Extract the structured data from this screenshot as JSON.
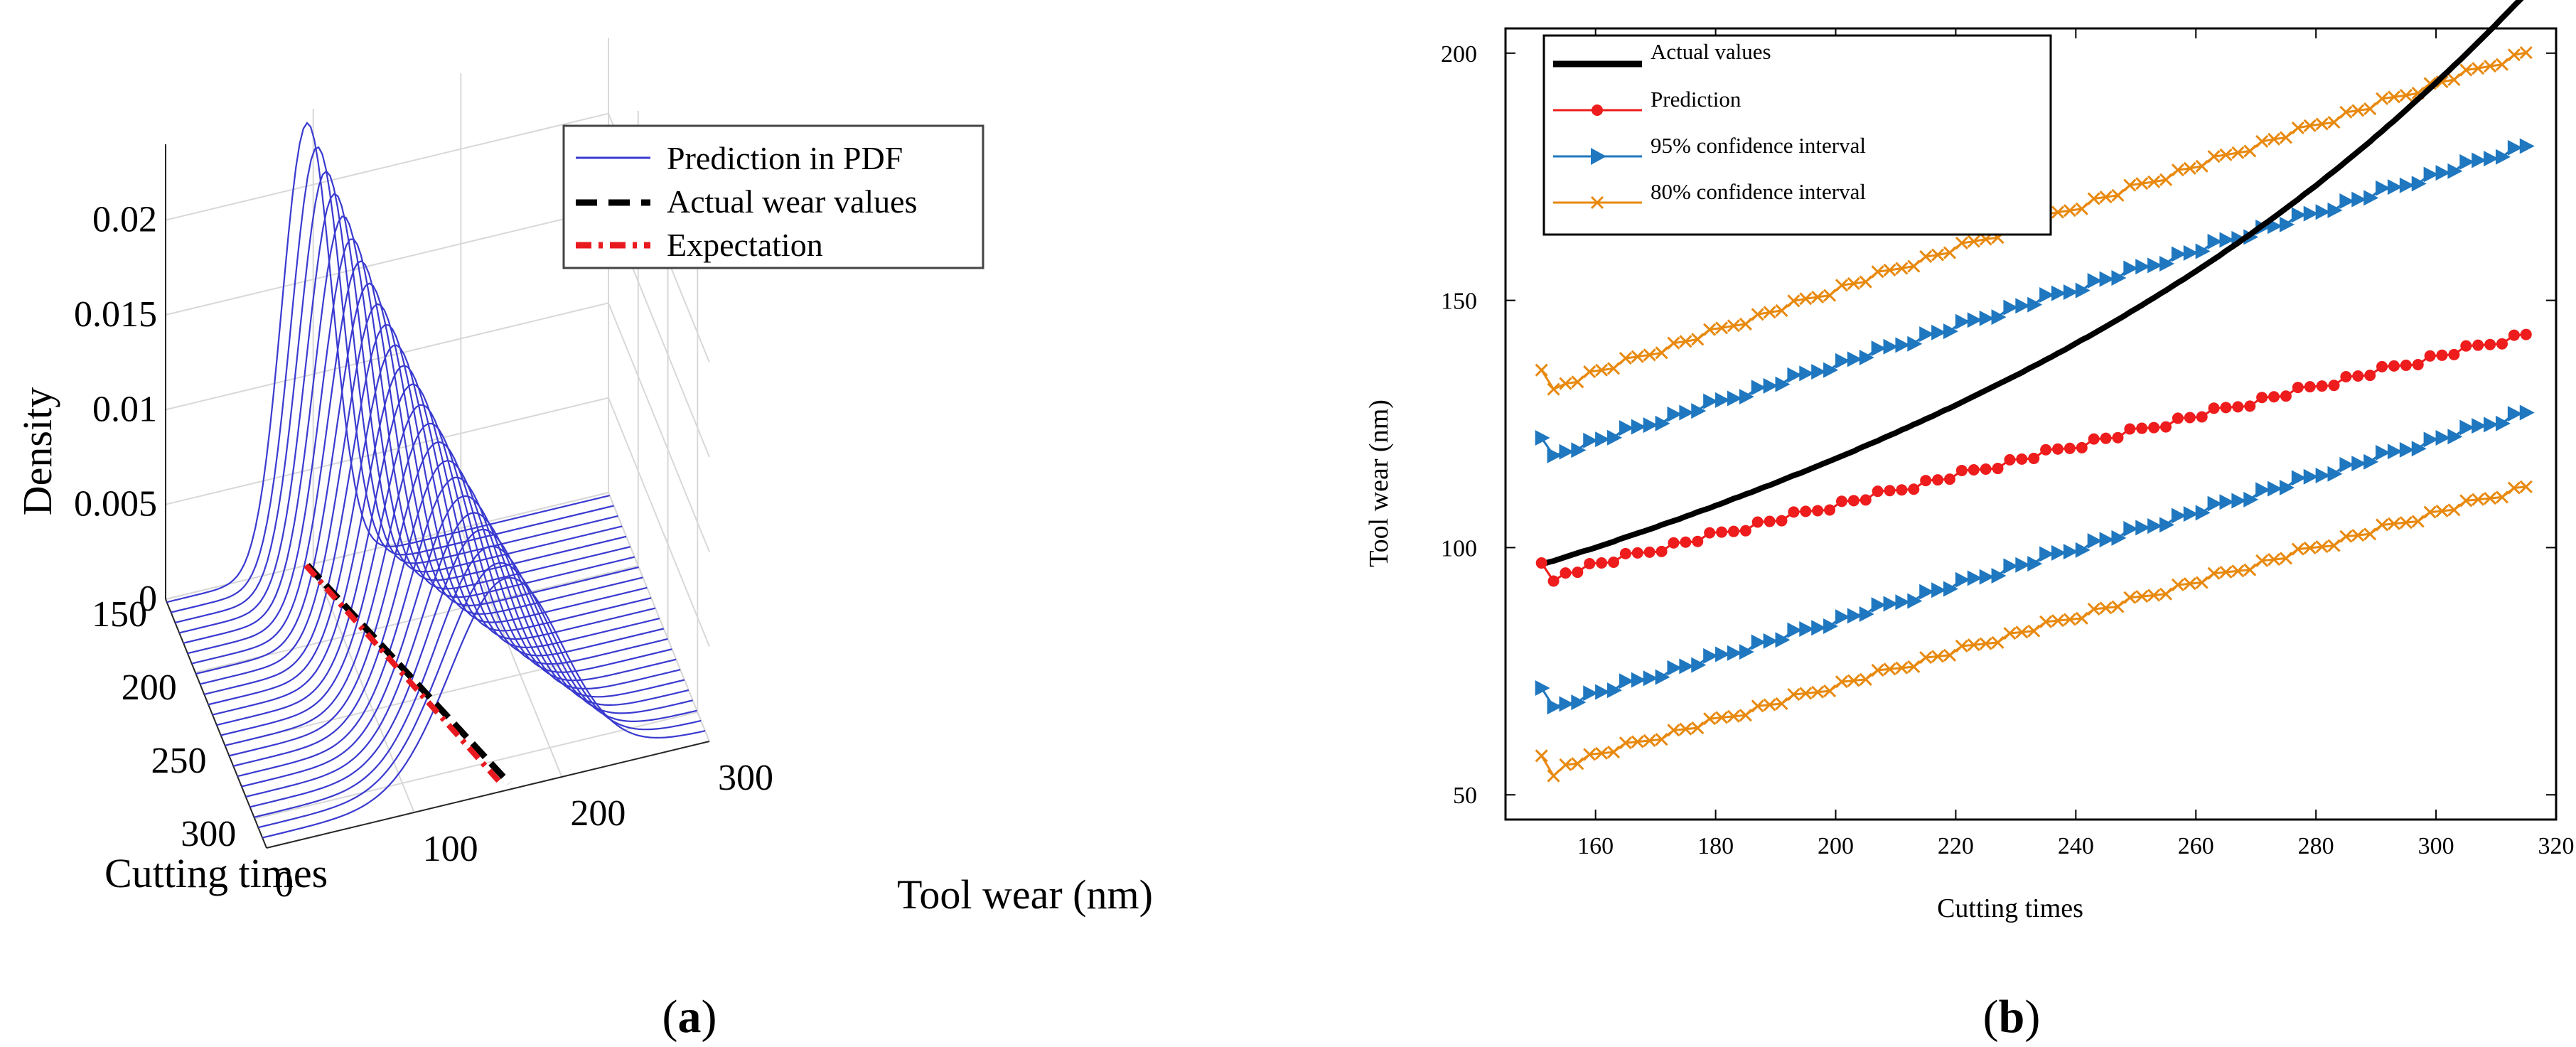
{
  "panels": {
    "a": {
      "caption_left": "(",
      "caption_letter": "a",
      "caption_right": ")"
    },
    "b": {
      "caption_left": "(",
      "caption_letter": "b",
      "caption_right": ")"
    }
  },
  "colors": {
    "pdf": "#3a3ad0",
    "actual": "#000000",
    "expectation": "#e8191f",
    "prediction": "#ee1c1c",
    "ci95": "#1f77bf",
    "ci80": "#e8890f"
  },
  "chart_data": [
    {
      "type": "line",
      "projection": "3d",
      "xlabel": "Cutting times",
      "ylabel": "Tool wear (nm)",
      "zlabel": "Density",
      "x_ticks": [
        "150",
        "200",
        "250",
        "300"
      ],
      "y_ticks": [
        "0",
        "100",
        "200",
        "300"
      ],
      "z_ticks": [
        "0",
        "0.005",
        "0.01",
        "0.015",
        "0.02"
      ],
      "xlim": [
        150,
        320
      ],
      "ylim": [
        0,
        300
      ],
      "zlim": [
        0,
        0.024
      ],
      "grid": true,
      "legend_position": "top-right",
      "legend": [
        "Prediction in PDF",
        "Actual wear values",
        "Expectation"
      ],
      "pdf_curves": {
        "cutting_times": [
          152,
          159,
          166,
          173,
          180,
          187,
          194,
          201,
          208,
          215,
          222,
          229,
          236,
          243,
          250,
          257,
          264,
          271,
          278,
          285,
          292,
          299,
          306,
          313
        ],
        "means": [
          95,
          99,
          102,
          105,
          108,
          111,
          114,
          117,
          120,
          123,
          126,
          129,
          132,
          135,
          138,
          141,
          144,
          147,
          150,
          153,
          156,
          159,
          162,
          165
        ],
        "peak_density": [
          0.0235,
          0.0227,
          0.0219,
          0.0212,
          0.0205,
          0.0198,
          0.0191,
          0.0184,
          0.0178,
          0.0172,
          0.0166,
          0.016,
          0.0155,
          0.0149,
          0.0144,
          0.0139,
          0.0134,
          0.013,
          0.0125,
          0.0121,
          0.0117,
          0.0113,
          0.0109,
          0.0106
        ]
      },
      "actual_line": {
        "x": [
          150,
          316
        ],
        "y": [
          96,
          166
        ]
      },
      "expectation_line": {
        "x": [
          150,
          313
        ],
        "y": [
          95,
          160
        ]
      }
    },
    {
      "type": "line",
      "xlabel": "Cutting times",
      "ylabel": "Tool wear (nm)",
      "xlim": [
        145,
        320
      ],
      "ylim": [
        45,
        205
      ],
      "x_ticks": [
        "160",
        "180",
        "200",
        "220",
        "240",
        "260",
        "280",
        "300",
        "320"
      ],
      "y_ticks": [
        "50",
        "100",
        "150",
        "200"
      ],
      "grid": false,
      "legend_position": "top-left",
      "series": [
        {
          "name": "Actual values",
          "x_start": 151,
          "x_step": 1,
          "values": [
            96.6,
            97.0,
            97.3,
            97.7,
            98.1,
            98.5,
            98.9,
            99.3,
            99.6,
            100.0,
            100.4,
            100.8,
            101.2,
            101.7,
            102.1,
            102.5,
            102.9,
            103.3,
            103.7,
            104.1,
            104.6,
            105.0,
            105.4,
            105.8,
            106.3,
            106.7,
            107.2,
            107.6,
            108.0,
            108.5,
            108.9,
            109.4,
            109.9,
            110.3,
            110.8,
            111.2,
            111.7,
            112.2,
            112.6,
            113.1,
            113.6,
            114.1,
            114.6,
            115.0,
            115.5,
            116.0,
            116.5,
            117.0,
            117.5,
            118.0,
            118.5,
            119.0,
            119.5,
            120.1,
            120.6,
            121.1,
            121.6,
            122.2,
            122.7,
            123.2,
            123.8,
            124.3,
            124.9,
            125.4,
            126.0,
            126.5,
            127.1,
            127.7,
            128.2,
            128.8,
            129.4,
            130.0,
            130.6,
            131.2,
            131.8,
            132.4,
            133.0,
            133.6,
            134.2,
            134.8,
            135.4,
            136.1,
            136.7,
            137.3,
            138.0,
            138.6,
            139.3,
            139.9,
            140.6,
            141.3,
            142.0,
            142.6,
            143.3,
            144.0,
            144.7,
            145.4,
            146.1,
            146.8,
            147.6,
            148.3,
            149.0,
            149.8,
            150.5,
            151.3,
            152.0,
            152.8,
            153.6,
            154.3,
            155.1,
            155.9,
            156.7,
            157.5,
            158.3,
            159.1,
            160.0,
            160.8,
            161.6,
            162.5,
            163.3,
            164.2,
            165.1,
            165.9,
            166.8,
            167.7,
            168.6,
            169.5,
            170.4,
            171.4,
            172.3,
            173.2,
            174.2,
            175.2,
            176.1,
            177.1,
            178.1,
            179.1,
            180.1,
            181.1,
            182.1,
            183.2,
            184.2,
            185.3,
            186.3,
            187.4,
            188.5,
            189.6,
            190.7,
            191.8,
            192.9,
            194.0,
            195.2,
            196.3,
            197.5,
            198.6,
            199.8,
            201.0,
            202.2,
            203.4,
            204.6,
            205.8,
            207.1,
            208.3,
            209.6,
            210.8,
            212.1,
            213.4
          ]
        },
        {
          "name": "Prediction",
          "x_start": 151,
          "x_step": 2,
          "values": [
            96.2,
            93.0,
            95.1,
            95.7,
            96.3,
            96.9,
            97.5,
            98.1,
            98.7,
            99.3,
            99.9,
            100.5,
            101.1,
            101.7,
            102.3,
            102.9,
            103.5,
            104.1,
            104.7,
            105.3,
            105.9,
            106.5,
            107.1,
            107.7,
            108.3,
            108.9,
            109.5,
            110.1,
            110.7,
            111.3,
            111.9,
            112.5,
            113.1,
            113.7,
            114.3,
            114.9,
            115.5,
            116.1,
            116.7,
            117.3,
            117.9,
            118.5,
            119.1,
            119.7,
            120.3,
            120.9,
            121.5,
            122.1,
            122.7,
            123.3,
            123.9,
            124.5,
            125.1,
            125.7,
            126.3,
            126.9,
            127.5,
            128.1,
            128.7,
            129.3,
            129.9,
            130.5,
            131.1,
            131.7,
            132.3,
            132.9,
            133.5,
            134.1,
            134.7,
            135.3,
            135.9,
            136.5,
            137.1,
            137.7,
            138.3,
            138.9,
            139.5,
            140.1,
            140.7,
            141.3,
            141.9,
            142.5,
            143.1
          ]
        },
        {
          "name": "95% confidence interval",
          "x_start": 151,
          "x_step": 2,
          "values": [
            121.5,
            118.4,
            119.6,
            120.4,
            121.2,
            121.9,
            122.7,
            123.5,
            124.2,
            125.0,
            125.8,
            126.5,
            127.3,
            128.1,
            128.9,
            129.6,
            130.4,
            131.2,
            131.9,
            132.7,
            133.5,
            134.2,
            135.0,
            135.8,
            136.6,
            137.3,
            138.1,
            138.9,
            139.6,
            140.4,
            141.2,
            141.9,
            142.7,
            143.5,
            144.2,
            145.0,
            145.8,
            146.6,
            147.3,
            148.1,
            148.9,
            149.6,
            150.4,
            151.2,
            151.9,
            152.7,
            153.5,
            154.3,
            155.0,
            155.8,
            156.6,
            157.3,
            158.1,
            158.9,
            159.6,
            160.4,
            161.2,
            162.0,
            162.7,
            163.5,
            164.3,
            165.0,
            165.8,
            166.6,
            167.3,
            168.1,
            168.9,
            169.6,
            170.4,
            171.2,
            172.0,
            172.7,
            173.5,
            174.3,
            175.0,
            175.8,
            176.6,
            177.3,
            178.1,
            178.9,
            179.7,
            180.4,
            181.2
          ]
        },
        {
          "name": "95% confidence interval (lower)",
          "x_start": 151,
          "x_step": 2,
          "values": [
            70.9,
            67.6,
            68.6,
            69.4,
            70.1,
            70.8,
            71.6,
            72.3,
            73.0,
            73.8,
            74.5,
            75.2,
            76.0,
            76.7,
            77.4,
            78.2,
            78.9,
            79.6,
            80.4,
            81.1,
            81.8,
            82.6,
            83.3,
            84.0,
            84.8,
            85.5,
            86.2,
            87.0,
            87.7,
            88.4,
            89.2,
            89.9,
            90.6,
            91.4,
            92.1,
            92.8,
            93.6,
            94.3,
            95.0,
            95.8,
            96.5,
            97.2,
            98.0,
            98.7,
            99.4,
            100.2,
            100.9,
            101.6,
            102.4,
            103.1,
            103.8,
            104.6,
            105.3,
            106.0,
            106.8,
            107.5,
            108.2,
            109.0,
            109.7,
            110.4,
            111.2,
            111.9,
            112.6,
            113.4,
            114.1,
            114.8,
            115.6,
            116.3,
            117.0,
            117.8,
            118.5,
            119.2,
            120.0,
            120.7,
            121.4,
            122.2,
            122.9,
            123.6,
            124.4,
            125.1,
            125.8,
            126.6,
            127.3
          ]
        },
        {
          "name": "80% confidence interval",
          "x_start": 151,
          "x_step": 2,
          "values": [
            135.2,
            131.8,
            133.4,
            134.2,
            135.1,
            135.9,
            136.7,
            137.6,
            138.4,
            139.2,
            140.1,
            140.9,
            141.7,
            142.6,
            143.4,
            144.2,
            145.1,
            145.9,
            146.7,
            147.6,
            148.4,
            149.2,
            150.1,
            150.9,
            151.7,
            152.6,
            153.4,
            154.2,
            155.1,
            155.9,
            156.7,
            157.6,
            158.4,
            159.2,
            160.1,
            160.9,
            161.7,
            162.6,
            163.4,
            164.2,
            165.1,
            165.9,
            166.7,
            167.6,
            168.4,
            169.2,
            170.1,
            170.9,
            171.7,
            172.6,
            173.4,
            174.2,
            175.1,
            175.9,
            176.7,
            177.6,
            178.4,
            179.2,
            180.1,
            180.9,
            181.7,
            182.6,
            183.4,
            184.2,
            185.1,
            185.9,
            186.7,
            187.6,
            188.4,
            189.2,
            190.1,
            190.9,
            191.7,
            192.6,
            193.4,
            194.2,
            195.1,
            195.9,
            196.7,
            197.6,
            198.4,
            199.2,
            200.1
          ]
        },
        {
          "name": "80% confidence interval (lower)",
          "x_start": 151,
          "x_step": 2,
          "values": [
            57.2,
            53.6,
            56.3,
            57.0,
            57.7,
            58.4,
            59.1,
            59.8,
            60.5,
            61.2,
            61.9,
            62.6,
            63.3,
            64.0,
            64.7,
            65.4,
            66.1,
            66.8,
            67.5,
            68.2,
            68.9,
            69.6,
            70.3,
            71.0,
            71.7,
            72.4,
            73.1,
            73.8,
            74.5,
            75.2,
            75.9,
            76.6,
            77.3,
            78.0,
            78.7,
            79.4,
            80.1,
            80.8,
            81.5,
            82.2,
            82.9,
            83.6,
            84.3,
            85.0,
            85.7,
            86.4,
            87.1,
            87.8,
            88.5,
            89.2,
            89.9,
            90.6,
            91.3,
            92.0,
            92.7,
            93.4,
            94.1,
            94.8,
            95.5,
            96.2,
            96.9,
            97.6,
            98.3,
            99.0,
            99.7,
            100.4,
            101.1,
            101.8,
            102.5,
            103.2,
            103.9,
            104.6,
            105.3,
            106.0,
            106.7,
            107.4,
            108.1,
            108.8,
            109.5,
            110.2,
            110.9,
            111.6,
            112.3
          ]
        }
      ],
      "legend": [
        "Actual values",
        "Prediction",
        "95% confidence interval",
        "80% confidence interval"
      ]
    }
  ]
}
